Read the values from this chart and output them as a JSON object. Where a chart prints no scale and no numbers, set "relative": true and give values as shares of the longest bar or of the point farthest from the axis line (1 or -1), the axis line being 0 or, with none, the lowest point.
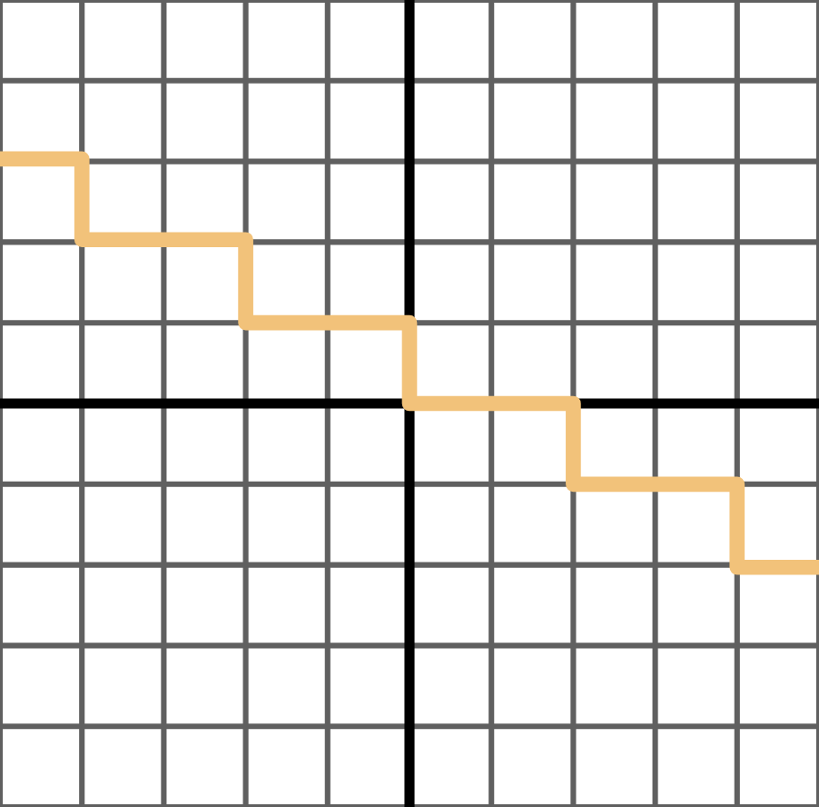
{
  "chart_data": {
    "type": "step",
    "relative": true,
    "categories": [
      null,
      null,
      null,
      null,
      null,
      null
    ],
    "series": [
      {
        "color": "#f2c27a",
        "values": [
          1,
          0.67,
          0.33,
          0,
          -0.33,
          -0.67
        ]
      }
    ],
    "grid": true,
    "marker": "none",
    "line_style": "solid"
  }
}
